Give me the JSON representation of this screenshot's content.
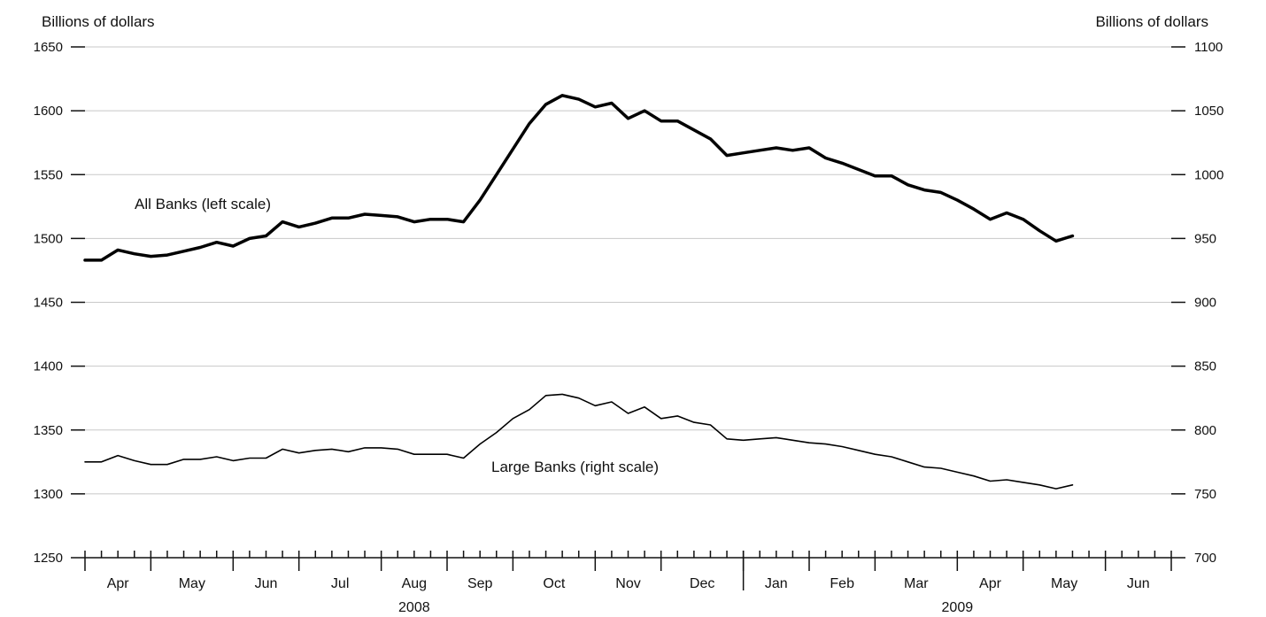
{
  "chart_data": {
    "type": "line",
    "left_axis": {
      "title": "Billions of dollars",
      "ylim": [
        1250,
        1650
      ],
      "ticks": [
        1250,
        1300,
        1350,
        1400,
        1450,
        1500,
        1550,
        1600,
        1650
      ]
    },
    "right_axis": {
      "title": "Billions of dollars",
      "ylim": [
        700,
        1100
      ],
      "ticks": [
        700,
        750,
        800,
        850,
        900,
        950,
        1000,
        1050,
        1100
      ]
    },
    "x_axis": {
      "months": [
        "Apr",
        "May",
        "Jun",
        "Jul",
        "Aug",
        "Sep",
        "Oct",
        "Nov",
        "Dec",
        "Jan",
        "Feb",
        "Mar",
        "Apr",
        "May",
        "Jun"
      ],
      "years": [
        "2008",
        "2009"
      ],
      "weeks_per_month": [
        4,
        5,
        4,
        5,
        4,
        4,
        5,
        4,
        5,
        4,
        4,
        5,
        4,
        5,
        4
      ]
    },
    "grid": true,
    "series": [
      {
        "name": "All Banks (left scale)",
        "axis": "left",
        "values": [
          1483,
          1483,
          1491,
          1488,
          1486,
          1487,
          1490,
          1493,
          1497,
          1494,
          1500,
          1502,
          1513,
          1509,
          1512,
          1516,
          1516,
          1519,
          1518,
          1517,
          1513,
          1515,
          1515,
          1513,
          1530,
          1550,
          1570,
          1590,
          1605,
          1612,
          1609,
          1603,
          1606,
          1594,
          1600,
          1592,
          1592,
          1585,
          1578,
          1565,
          1567,
          1569,
          1571,
          1569,
          1571,
          1563,
          1559,
          1554,
          1549,
          1549,
          1542,
          1538,
          1536,
          1530,
          1523,
          1515,
          1520,
          1515,
          1506,
          1498,
          1502
        ]
      },
      {
        "name": "Large Banks (right scale)",
        "axis": "right",
        "values": [
          775,
          775,
          780,
          776,
          773,
          773,
          777,
          777,
          779,
          776,
          778,
          778,
          785,
          782,
          784,
          785,
          783,
          786,
          786,
          785,
          781,
          781,
          781,
          778,
          789,
          798,
          809,
          816,
          827,
          828,
          825,
          819,
          822,
          813,
          818,
          809,
          811,
          806,
          804,
          793,
          792,
          793,
          794,
          792,
          790,
          789,
          787,
          784,
          781,
          779,
          775,
          771,
          770,
          767,
          764,
          760,
          761,
          759,
          757,
          754,
          757
        ]
      }
    ]
  }
}
